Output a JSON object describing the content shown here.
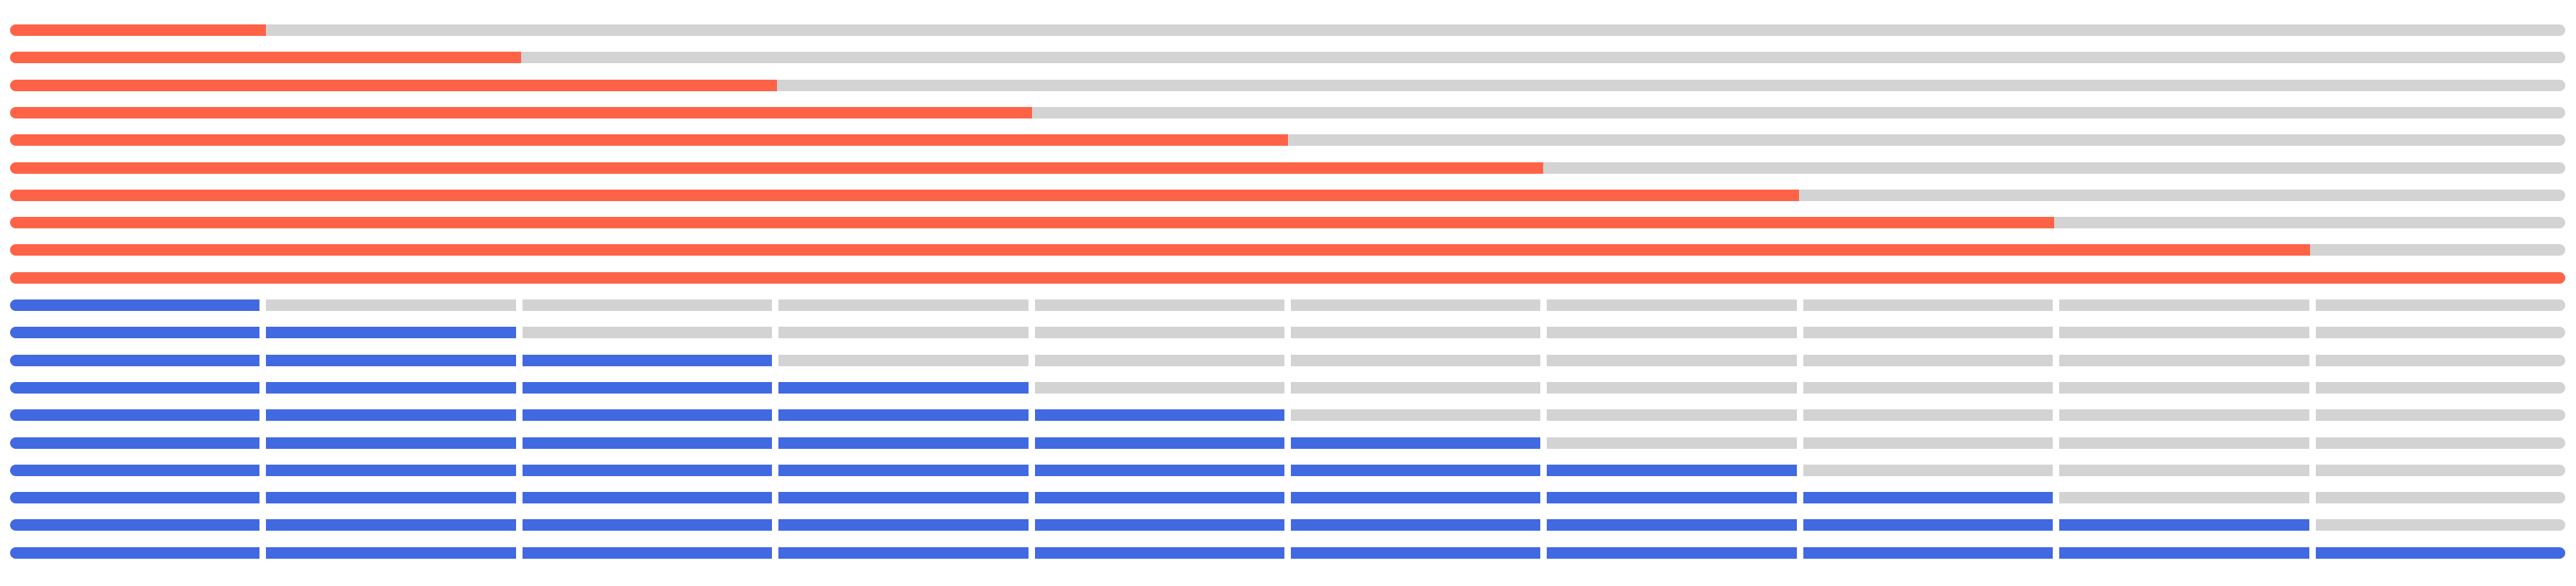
{
  "colors": {
    "continuous_fill": "#ff6347",
    "segmented_fill": "#4169e1",
    "track": "#d3d3d3",
    "background": "#ffffff"
  },
  "continuous_bars": {
    "progress": [
      0.1,
      0.2,
      0.3,
      0.4,
      0.5,
      0.6,
      0.7,
      0.8,
      0.9,
      1.0
    ]
  },
  "segmented_bars": {
    "segment_count": 10,
    "filled_segments": [
      1,
      2,
      3,
      4,
      5,
      6,
      7,
      8,
      9,
      10
    ]
  }
}
